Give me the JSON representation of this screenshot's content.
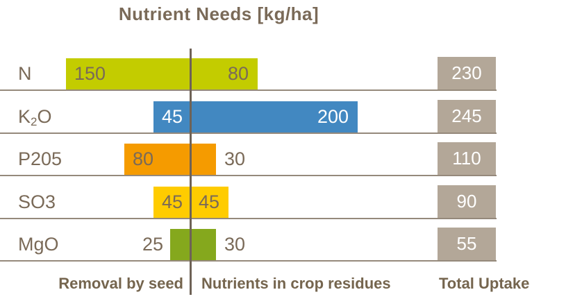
{
  "colors": {
    "text_brown": "#7a6a58",
    "footer_brown": "#75654e",
    "row_line": "#95897b",
    "center_line": "#6e6256",
    "total_box": "#b3a798",
    "white": "#ffffff"
  },
  "chart_data": {
    "type": "bar",
    "variant": "diverging-horizontal",
    "title": "Nutrient Needs [kg/ha]",
    "unit": "kg/ha",
    "categories": [
      "N",
      "K2O",
      "P205",
      "SO3",
      "MgO"
    ],
    "series": [
      {
        "name": "Removal by seed",
        "values": [
          150,
          45,
          80,
          45,
          25
        ]
      },
      {
        "name": "Nutrients in crop residues",
        "values": [
          80,
          200,
          30,
          45,
          30
        ]
      },
      {
        "name": "Total Uptake",
        "values": [
          230,
          245,
          110,
          90,
          55
        ]
      }
    ],
    "rows": [
      {
        "label_parts": [
          {
            "t": "N"
          }
        ],
        "seed": 150,
        "residue": 80,
        "total": 230,
        "bar_color": "#c3cc00",
        "value_color": "#7a6a58"
      },
      {
        "label_parts": [
          {
            "t": "K"
          },
          {
            "t": "2",
            "sub": true
          },
          {
            "t": "O"
          }
        ],
        "seed": 45,
        "residue": 200,
        "total": 245,
        "bar_color": "#4288c1",
        "value_color": "#ffffff"
      },
      {
        "label_parts": [
          {
            "t": "P205"
          }
        ],
        "seed": 80,
        "residue": 30,
        "total": 110,
        "bar_color": "#f59b00",
        "value_color": "#7a6a58"
      },
      {
        "label_parts": [
          {
            "t": "SO3"
          }
        ],
        "seed": 45,
        "residue": 45,
        "total": 90,
        "bar_color": "#ffcc00",
        "value_color": "#7a6a58"
      },
      {
        "label_parts": [
          {
            "t": "MgO"
          }
        ],
        "seed": 25,
        "residue": 30,
        "total": 55,
        "bar_color": "#85a81d",
        "value_color": "#7a6a58"
      }
    ],
    "footer": {
      "left_label": "Removal by seed",
      "right_label": "Nutrients in crop residues",
      "total_label": "Total Uptake"
    },
    "layout_hints": {
      "legend_position": "bottom",
      "grid": "horizontal-row-separators",
      "value_axis_hidden": true
    }
  }
}
